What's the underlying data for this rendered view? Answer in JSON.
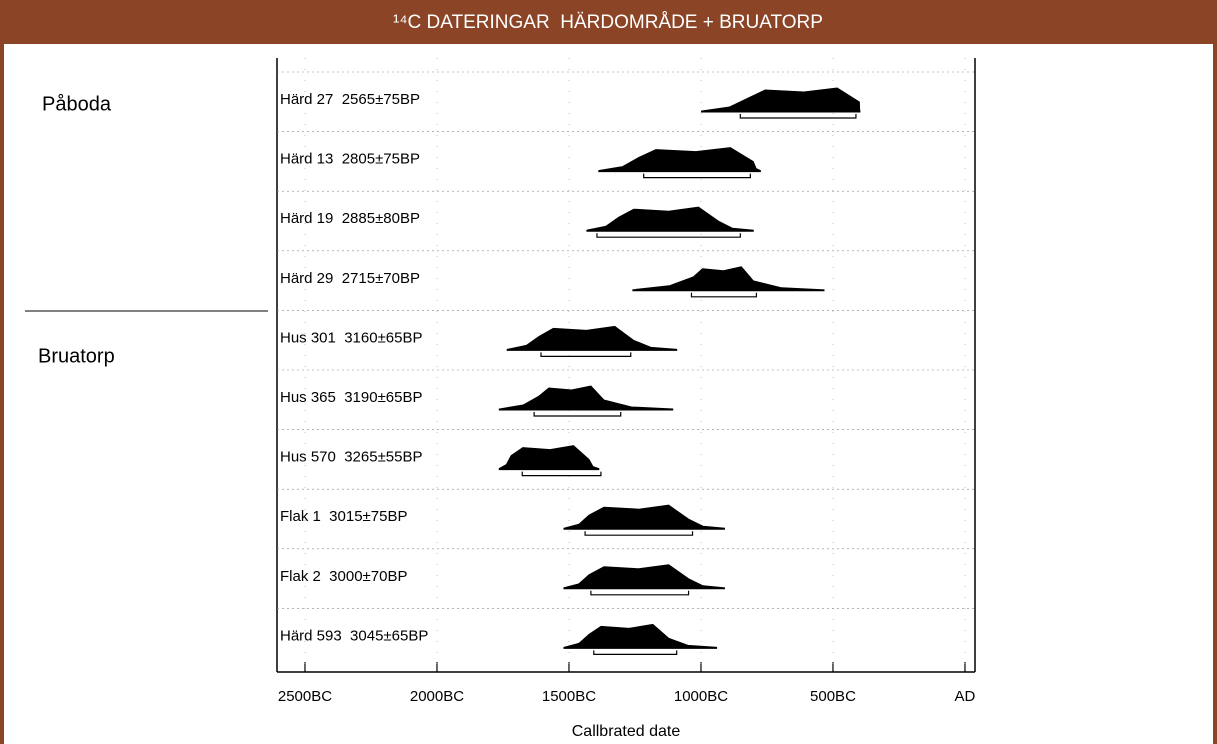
{
  "chart_data": {
    "type": "calibration",
    "title": "¹⁴C DATERINGAR  HÄRDOMRÅDE + BRUATORP",
    "groups": [
      "Påboda",
      "Bruatorp"
    ],
    "x_label": "Callbrated date",
    "xlim": [
      -2606,
      38
    ],
    "xticks": [
      {
        "value": -2500,
        "label": "2500BC"
      },
      {
        "value": -2000,
        "label": "2000BC"
      },
      {
        "value": -1500,
        "label": "1500BC"
      },
      {
        "value": -1000,
        "label": "1000BC"
      },
      {
        "value": -500,
        "label": "500BC"
      },
      {
        "value": 0,
        "label": "AD"
      }
    ],
    "samples": [
      {
        "label": "Härd 27  2565±75BP",
        "span": [
          -998,
          -398
        ],
        "peak": [
          -820,
          -400
        ],
        "range": [
          -851,
          -413
        ]
      },
      {
        "label": "Härd 13  2805±75BP",
        "span": [
          -1387,
          -775
        ],
        "peak": [
          -1236,
          -802
        ],
        "range": [
          -1217,
          -813
        ]
      },
      {
        "label": "Härd 19  2885±80BP",
        "span": [
          -1432,
          -802
        ],
        "peak": [
          -1311,
          -934
        ],
        "range": [
          -1394,
          -851
        ]
      },
      {
        "label": "Härd 29  2715±70BP",
        "span": [
          -1258,
          -534
        ],
        "peak": [
          -1028,
          -802
        ],
        "range": [
          -1036,
          -790
        ]
      },
      {
        "label": "Hus 301  3160±65BP",
        "span": [
          -1734,
          -1092
        ],
        "peak": [
          -1613,
          -1255
        ],
        "range": [
          -1606,
          -1266
        ]
      },
      {
        "label": "Hus 365  3190±65BP",
        "span": [
          -1764,
          -1107
        ],
        "peak": [
          -1613,
          -1368
        ],
        "range": [
          -1632,
          -1304
        ]
      },
      {
        "label": "Hus 570  3265±55BP",
        "span": [
          -1764,
          -1387
        ],
        "peak": [
          -1719,
          -1424
        ],
        "range": [
          -1677,
          -1379
        ]
      },
      {
        "label": "Flak 1  3015±75BP",
        "span": [
          -1519,
          -911
        ],
        "peak": [
          -1424,
          -1047
        ],
        "range": [
          -1439,
          -1032
        ]
      },
      {
        "label": "Flak 2  3000±70BP",
        "span": [
          -1519,
          -911
        ],
        "peak": [
          -1424,
          -1047
        ],
        "range": [
          -1417,
          -1047
        ]
      },
      {
        "label": "Härd 593  3045±65BP",
        "span": [
          -1519,
          -941
        ],
        "peak": [
          -1424,
          -1122
        ],
        "range": [
          -1406,
          -1092
        ]
      }
    ],
    "header_color": "#8b4426"
  }
}
